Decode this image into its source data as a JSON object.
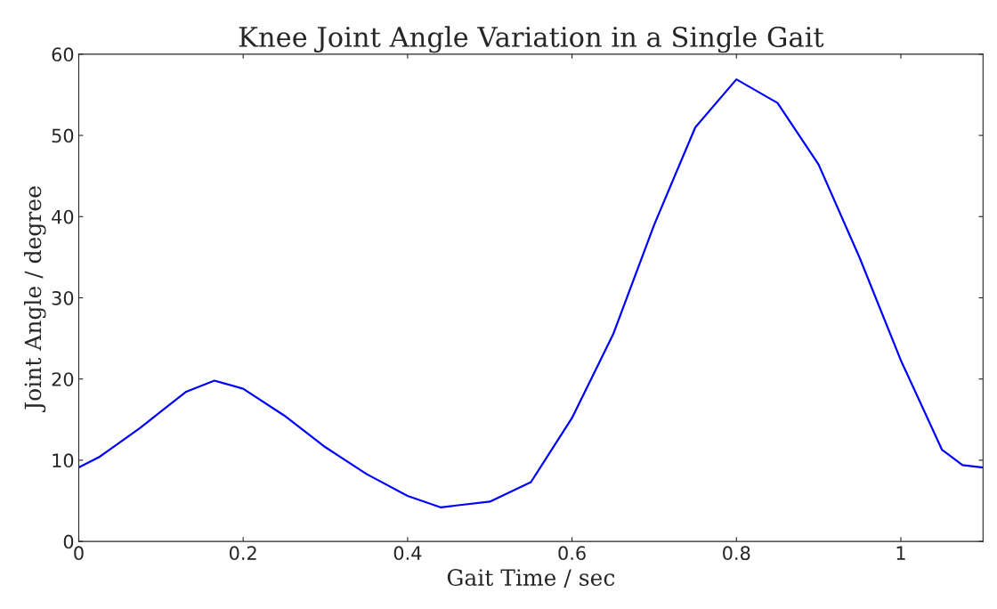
{
  "chart_data": {
    "type": "line",
    "title": "Knee Joint Angle Variation in a Single Gait",
    "xlabel": "Gait Time / sec",
    "ylabel": "Joint Angle / degree",
    "series": [
      {
        "color": "#0000ff",
        "x": [
          0,
          0.025,
          0.05,
          0.075,
          0.1,
          0.13,
          0.165,
          0.2,
          0.25,
          0.3,
          0.35,
          0.4,
          0.44,
          0.5,
          0.55,
          0.6,
          0.65,
          0.7,
          0.75,
          0.8,
          0.85,
          0.9,
          0.95,
          1.0,
          1.05,
          1.075,
          1.1
        ],
        "values": [
          9.1,
          10.4,
          12.2,
          14.0,
          16.0,
          18.4,
          19.8,
          18.8,
          15.5,
          11.6,
          8.3,
          5.6,
          4.2,
          4.9,
          7.3,
          15.2,
          25.5,
          39,
          51,
          56.9,
          54,
          46.4,
          34.9,
          22.3,
          11.3,
          9.4,
          9.1
        ]
      }
    ],
    "xlim": [
      0,
      1.1
    ],
    "xticks": [
      0,
      0.2,
      0.4,
      0.6,
      0.8,
      1
    ],
    "ylim": [
      0,
      60
    ],
    "yticks": [
      0,
      10,
      20,
      30,
      40,
      50,
      60
    ],
    "grid": false,
    "marker": "none",
    "line_style": "solid"
  }
}
